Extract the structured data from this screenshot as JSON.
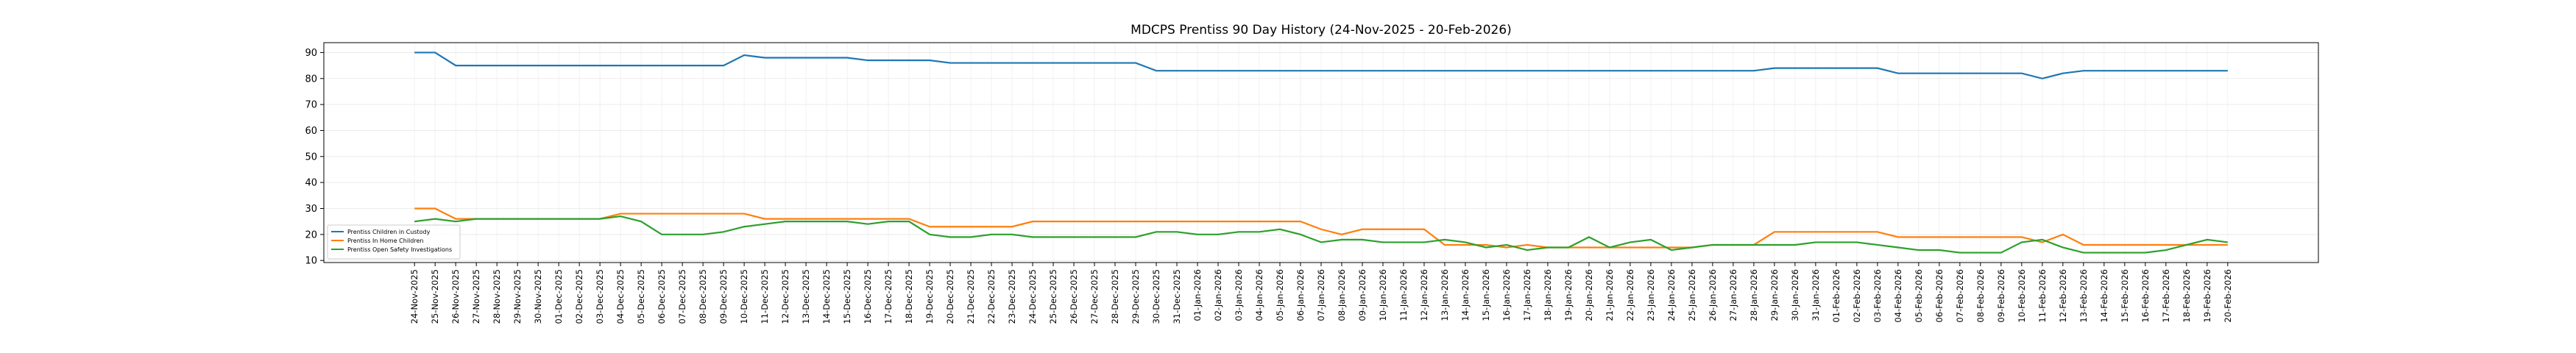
{
  "chart_data": {
    "type": "line",
    "title": "MDCPS Prentiss 90 Day History (24-Nov-2025 - 20-Feb-2026)",
    "x": [
      "24-Nov-2025",
      "25-Nov-2025",
      "26-Nov-2025",
      "27-Nov-2025",
      "28-Nov-2025",
      "29-Nov-2025",
      "30-Nov-2025",
      "01-Dec-2025",
      "02-Dec-2025",
      "03-Dec-2025",
      "04-Dec-2025",
      "05-Dec-2025",
      "06-Dec-2025",
      "07-Dec-2025",
      "08-Dec-2025",
      "09-Dec-2025",
      "10-Dec-2025",
      "11-Dec-2025",
      "12-Dec-2025",
      "13-Dec-2025",
      "14-Dec-2025",
      "15-Dec-2025",
      "16-Dec-2025",
      "17-Dec-2025",
      "18-Dec-2025",
      "19-Dec-2025",
      "20-Dec-2025",
      "21-Dec-2025",
      "22-Dec-2025",
      "23-Dec-2025",
      "24-Dec-2025",
      "25-Dec-2025",
      "26-Dec-2025",
      "27-Dec-2025",
      "28-Dec-2025",
      "29-Dec-2025",
      "30-Dec-2025",
      "31-Dec-2025",
      "01-Jan-2026",
      "02-Jan-2026",
      "03-Jan-2026",
      "04-Jan-2026",
      "05-Jan-2026",
      "06-Jan-2026",
      "07-Jan-2026",
      "08-Jan-2026",
      "09-Jan-2026",
      "10-Jan-2026",
      "11-Jan-2026",
      "12-Jan-2026",
      "13-Jan-2026",
      "14-Jan-2026",
      "15-Jan-2026",
      "16-Jan-2026",
      "17-Jan-2026",
      "18-Jan-2026",
      "19-Jan-2026",
      "20-Jan-2026",
      "21-Jan-2026",
      "22-Jan-2026",
      "23-Jan-2026",
      "24-Jan-2026",
      "25-Jan-2026",
      "26-Jan-2026",
      "27-Jan-2026",
      "28-Jan-2026",
      "29-Jan-2026",
      "30-Jan-2026",
      "31-Jan-2026",
      "01-Feb-2026",
      "02-Feb-2026",
      "03-Feb-2026",
      "04-Feb-2026",
      "05-Feb-2026",
      "06-Feb-2026",
      "07-Feb-2026",
      "08-Feb-2026",
      "09-Feb-2026",
      "10-Feb-2026",
      "11-Feb-2026",
      "12-Feb-2026",
      "13-Feb-2026",
      "14-Feb-2026",
      "15-Feb-2026",
      "16-Feb-2026",
      "17-Feb-2026",
      "18-Feb-2026",
      "19-Feb-2026",
      "20-Feb-2026"
    ],
    "series": [
      {
        "name": "Prentiss Children in Custody",
        "color": "#1f77b4",
        "values": [
          90,
          90,
          85,
          85,
          85,
          85,
          85,
          85,
          85,
          85,
          85,
          85,
          85,
          85,
          85,
          85,
          89,
          88,
          88,
          88,
          88,
          88,
          87,
          87,
          87,
          87,
          86,
          86,
          86,
          86,
          86,
          86,
          86,
          86,
          86,
          86,
          83,
          83,
          83,
          83,
          83,
          83,
          83,
          83,
          83,
          83,
          83,
          83,
          83,
          83,
          83,
          83,
          83,
          83,
          83,
          83,
          83,
          83,
          83,
          83,
          83,
          83,
          83,
          83,
          83,
          83,
          84,
          84,
          84,
          84,
          84,
          84,
          82,
          82,
          82,
          82,
          82,
          82,
          82,
          80,
          82,
          83,
          83,
          83,
          83,
          83,
          83,
          83,
          83
        ]
      },
      {
        "name": "Prentiss In Home Children",
        "color": "#ff7f0e",
        "values": [
          30,
          30,
          26,
          26,
          26,
          26,
          26,
          26,
          26,
          26,
          28,
          28,
          28,
          28,
          28,
          28,
          28,
          26,
          26,
          26,
          26,
          26,
          26,
          26,
          26,
          23,
          23,
          23,
          23,
          23,
          25,
          25,
          25,
          25,
          25,
          25,
          25,
          25,
          25,
          25,
          25,
          25,
          25,
          25,
          22,
          20,
          22,
          22,
          22,
          22,
          16,
          16,
          16,
          15,
          16,
          15,
          15,
          15,
          15,
          15,
          15,
          15,
          15,
          16,
          16,
          16,
          21,
          21,
          21,
          21,
          21,
          21,
          19,
          19,
          19,
          19,
          19,
          19,
          19,
          17,
          20,
          16,
          16,
          16,
          16,
          16,
          16,
          16,
          16
        ]
      },
      {
        "name": "Prentiss Open Safety Investigations",
        "color": "#2ca02c",
        "values": [
          25,
          26,
          25,
          26,
          26,
          26,
          26,
          26,
          26,
          26,
          27,
          25,
          20,
          20,
          20,
          21,
          23,
          24,
          25,
          25,
          25,
          25,
          24,
          25,
          25,
          20,
          19,
          19,
          20,
          20,
          19,
          19,
          19,
          19,
          19,
          19,
          21,
          21,
          20,
          20,
          21,
          21,
          22,
          20,
          17,
          18,
          18,
          17,
          17,
          17,
          18,
          17,
          15,
          16,
          14,
          15,
          15,
          19,
          15,
          17,
          18,
          14,
          15,
          16,
          16,
          16,
          16,
          16,
          17,
          17,
          17,
          16,
          15,
          14,
          14,
          13,
          13,
          13,
          17,
          18,
          15,
          13,
          13,
          13,
          13,
          14,
          16,
          18,
          17
        ]
      }
    ],
    "ylim": [
      9.2,
      93.8
    ],
    "yticks": [
      10,
      20,
      30,
      40,
      50,
      60,
      70,
      80,
      90
    ],
    "grid": true,
    "legend": "lower left"
  }
}
